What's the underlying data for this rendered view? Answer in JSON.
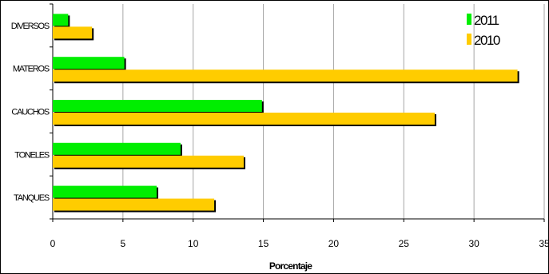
{
  "chart_data": {
    "type": "bar",
    "orientation": "horizontal",
    "categories": [
      "DIVERSOS",
      "MATEROS",
      "CAUCHOS",
      "TONELES",
      "TANQUES"
    ],
    "series": [
      {
        "name": "2011",
        "color": "#00ee00",
        "values": [
          1.1,
          5.1,
          14.9,
          9.1,
          7.4
        ]
      },
      {
        "name": "2010",
        "color": "#ffcc00",
        "values": [
          2.8,
          33.1,
          27.2,
          13.6,
          11.5
        ]
      }
    ],
    "xlabel": "Porcentaje",
    "ylabel": "",
    "xlim": [
      0,
      35
    ],
    "xticks": [
      "0",
      "5",
      "10",
      "15",
      "20",
      "25",
      "30",
      "35"
    ],
    "grid": true,
    "legend_position": "top-right"
  }
}
